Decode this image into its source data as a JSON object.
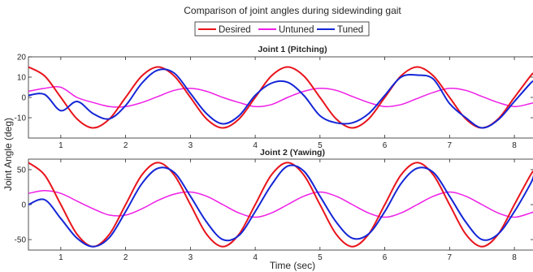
{
  "figure": {
    "title": "Comparison of joint angles during sidewinding gait",
    "xlabel": "Time (sec)",
    "ylabel": "Joint Angle (deg)",
    "legend": [
      "Desired",
      "Untuned",
      "Tuned"
    ],
    "colors": {
      "Desired": "#e8141c",
      "Untuned": "#ee1ee6",
      "Tuned": "#1426d6"
    }
  },
  "chart_data": [
    {
      "type": "line",
      "title": "Joint 1 (Pitching)",
      "xlim": [
        0.5,
        8.3
      ],
      "ylim": [
        -20,
        20
      ],
      "xticks": [
        1,
        2,
        3,
        4,
        5,
        6,
        7,
        8
      ],
      "yticks": [
        20,
        10,
        0,
        -10
      ],
      "grid": false,
      "legend_position": "top-center (above plots)",
      "x": [
        0.5,
        0.75,
        1.0,
        1.25,
        1.5,
        1.75,
        2.0,
        2.25,
        2.5,
        2.75,
        3.0,
        3.25,
        3.5,
        3.75,
        4.0,
        4.25,
        4.5,
        4.75,
        5.0,
        5.25,
        5.5,
        5.75,
        6.0,
        6.25,
        6.5,
        6.75,
        7.0,
        7.25,
        7.5,
        7.75,
        8.0,
        8.25,
        8.3
      ],
      "series": [
        {
          "name": "Desired",
          "values": [
            15,
            10.6,
            0,
            -10.6,
            -15,
            -10.6,
            0,
            10.6,
            15,
            10.6,
            0,
            -10.6,
            -15,
            -10.6,
            0,
            10.6,
            15,
            10.6,
            0,
            -10.6,
            -15,
            -10.6,
            0,
            10.6,
            15,
            10.6,
            0,
            -10.6,
            -15,
            -10.6,
            0,
            10.6,
            11.9
          ]
        },
        {
          "name": "Untuned",
          "values": [
            3,
            4.5,
            5,
            0,
            -2.5,
            -4.5,
            -4.5,
            -2.5,
            0.5,
            3.5,
            4.5,
            3,
            0,
            -2.5,
            -4.5,
            -3.5,
            0,
            3,
            4.5,
            3.5,
            0.5,
            -2.5,
            -4.5,
            -3.5,
            -0.5,
            2.5,
            4.5,
            3.5,
            0.5,
            -2.5,
            -4.5,
            -3,
            -2.5
          ]
        },
        {
          "name": "Tuned",
          "values": [
            1,
            1.5,
            -6.5,
            -2,
            -8,
            -10.5,
            -4,
            7,
            13.5,
            12,
            2,
            -8,
            -13,
            -9,
            1,
            7,
            7.5,
            1,
            -9,
            -12.5,
            -12.5,
            -8,
            1,
            10,
            11,
            9,
            -3,
            -10,
            -15,
            -11,
            -2,
            7,
            8
          ]
        }
      ]
    },
    {
      "type": "line",
      "title": "Joint 2 (Yawing)",
      "xlim": [
        0.5,
        8.3
      ],
      "ylim": [
        -65,
        65
      ],
      "xticks": [
        1,
        2,
        3,
        4,
        5,
        6,
        7,
        8
      ],
      "yticks": [
        50,
        0,
        -50
      ],
      "grid": false,
      "x": [
        0.5,
        0.75,
        1.0,
        1.25,
        1.5,
        1.75,
        2.0,
        2.25,
        2.5,
        2.75,
        3.0,
        3.25,
        3.5,
        3.75,
        4.0,
        4.25,
        4.5,
        4.75,
        5.0,
        5.25,
        5.5,
        5.75,
        6.0,
        6.25,
        6.5,
        6.75,
        7.0,
        7.25,
        7.5,
        7.75,
        8.0,
        8.25,
        8.3
      ],
      "series": [
        {
          "name": "Desired",
          "values": [
            60,
            42.4,
            0,
            -42.4,
            -60,
            -42.4,
            0,
            42.4,
            60,
            42.4,
            0,
            -42.4,
            -60,
            -42.4,
            0,
            42.4,
            60,
            42.4,
            0,
            -42.4,
            -60,
            -42.4,
            0,
            42.4,
            60,
            42.4,
            0,
            -42.4,
            -60,
            -42.4,
            0,
            42.4,
            47.7
          ]
        },
        {
          "name": "Untuned",
          "values": [
            16,
            20,
            16,
            5,
            -6,
            -15,
            -15,
            -6,
            6,
            15,
            18,
            12,
            0,
            -12,
            -18,
            -12,
            0,
            12,
            18,
            12,
            0,
            -12,
            -18,
            -12,
            0,
            12,
            18,
            12,
            0,
            -12,
            -18,
            -12,
            -10
          ]
        },
        {
          "name": "Tuned",
          "values": [
            0,
            7,
            -20,
            -48,
            -60,
            -47,
            -10,
            30,
            52,
            46,
            12,
            -25,
            -50,
            -44,
            -10,
            28,
            55,
            48,
            12,
            -25,
            -48,
            -42,
            -10,
            30,
            52,
            46,
            12,
            -25,
            -50,
            -42,
            -10,
            30,
            42
          ]
        }
      ]
    }
  ]
}
